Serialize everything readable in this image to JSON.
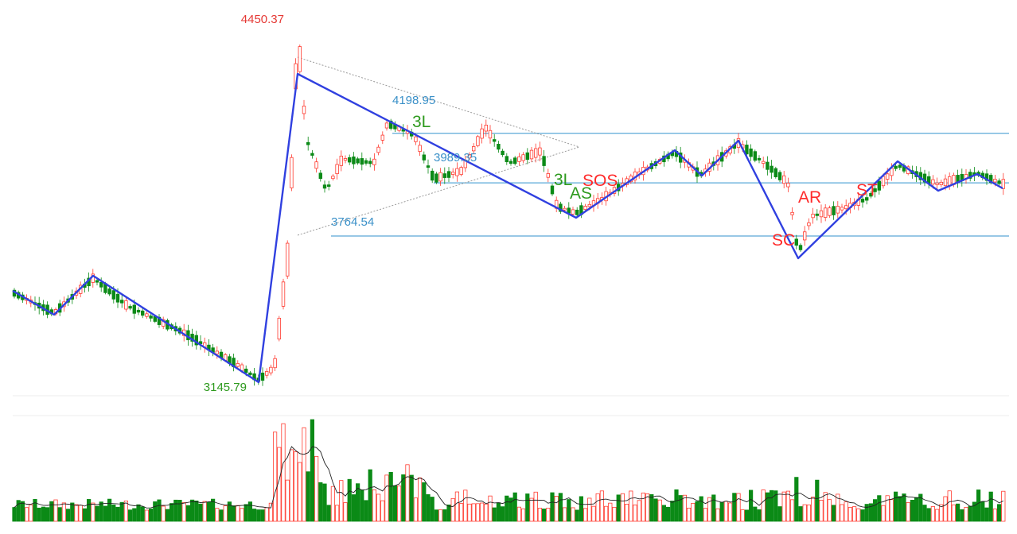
{
  "colors": {
    "up": "#ff3b30",
    "down": "#0b8a16",
    "trend": "#3040e0",
    "level": "#5aa8d8",
    "triangle": "#9a9a9a",
    "ma": "#222222",
    "price_high": "#e53935",
    "price_low": "#2e9a1e",
    "price_mid": "#3a90c8",
    "event_green": "#2e9a1e",
    "event_red": "#ff2a2a",
    "grid": "#e8e8e8"
  },
  "chart_data": {
    "type": "candlestick",
    "price_labels": [
      {
        "id": "high",
        "text": "4450.37"
      },
      {
        "id": "low",
        "text": "3145.79"
      },
      {
        "id": "h2",
        "text": "4198.95"
      },
      {
        "id": "mid",
        "text": "3989.35"
      },
      {
        "id": "l2",
        "text": "3764.54"
      }
    ],
    "horizontal_levels": [
      4198.95,
      3989.35,
      3764.54
    ],
    "event_labels": [
      {
        "id": "3l-a",
        "text": "3L"
      },
      {
        "id": "3l-b",
        "text": "3L"
      },
      {
        "id": "as",
        "text": "AS"
      },
      {
        "id": "sos",
        "text": "SOS"
      },
      {
        "id": "sc",
        "text": "SC"
      },
      {
        "id": "ar",
        "text": "AR"
      },
      {
        "id": "st",
        "text": "ST"
      }
    ],
    "price_range": [
      3145.79,
      4450.37
    ],
    "volume_panel": true
  }
}
